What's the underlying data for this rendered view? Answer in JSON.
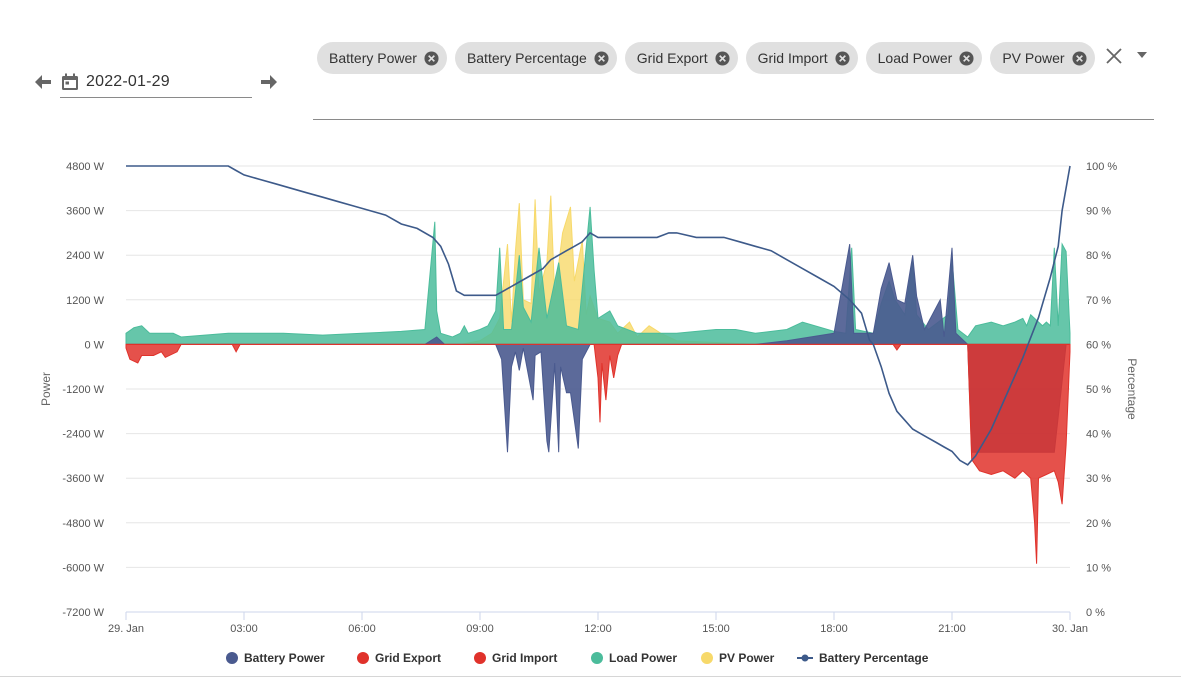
{
  "date_picker": {
    "value": "2022-01-29",
    "prev_icon": "arrow-left-icon",
    "next_icon": "arrow-right-icon",
    "calendar_icon": "calendar-icon"
  },
  "series_select": {
    "chips": [
      "Battery Power",
      "Battery Percentage",
      "Grid Export",
      "Grid Import",
      "Load Power",
      "PV Power"
    ],
    "clear_icon": "close-icon",
    "dropdown_icon": "caret-down-icon"
  },
  "chart_data": {
    "type": "area",
    "title": "",
    "ylabel": "Power",
    "ylabel_right": "Percentage",
    "ylim": [
      -7200,
      4800
    ],
    "ylim_right": [
      0,
      100
    ],
    "y_ticks": [
      "4800 W",
      "3600 W",
      "2400 W",
      "1200 W",
      "0 W",
      "-1200 W",
      "-2400 W",
      "-3600 W",
      "-4800 W",
      "-6000 W",
      "-7200 W"
    ],
    "y_ticks_right": [
      "100 %",
      "90 %",
      "80 %",
      "70 %",
      "60 %",
      "50 %",
      "40 %",
      "30 %",
      "20 %",
      "10 %",
      "0 %"
    ],
    "x_ticks": [
      "29. Jan",
      "03:00",
      "06:00",
      "09:00",
      "12:00",
      "15:00",
      "18:00",
      "21:00",
      "30. Jan"
    ],
    "x_unit": "hour",
    "xlim": [
      0,
      24
    ],
    "grid": true,
    "legend_position": "bottom",
    "series": [
      {
        "name": "Battery Power",
        "axis": "left",
        "type": "area",
        "color": "#4a5a8f",
        "points": [
          [
            0,
            0
          ],
          [
            7.6,
            0
          ],
          [
            7.9,
            200
          ],
          [
            8.1,
            0
          ],
          [
            9.4,
            0
          ],
          [
            9.55,
            -400
          ],
          [
            9.7,
            -2900
          ],
          [
            9.8,
            -600
          ],
          [
            9.9,
            -200
          ],
          [
            10.0,
            -700
          ],
          [
            10.1,
            -100
          ],
          [
            10.35,
            -1500
          ],
          [
            10.4,
            -300
          ],
          [
            10.55,
            -200
          ],
          [
            10.7,
            -2600
          ],
          [
            10.75,
            -2900
          ],
          [
            10.9,
            -500
          ],
          [
            11.0,
            -2900
          ],
          [
            11.05,
            -600
          ],
          [
            11.2,
            -1300
          ],
          [
            11.3,
            -1300
          ],
          [
            11.5,
            -2800
          ],
          [
            11.6,
            -400
          ],
          [
            11.8,
            0
          ],
          [
            12.0,
            0
          ],
          [
            16.0,
            0
          ],
          [
            16.8,
            100
          ],
          [
            18.0,
            300
          ],
          [
            18.4,
            2700
          ],
          [
            18.5,
            300
          ],
          [
            19.0,
            300
          ],
          [
            19.2,
            1500
          ],
          [
            19.4,
            2200
          ],
          [
            19.5,
            1700
          ],
          [
            19.6,
            1200
          ],
          [
            19.8,
            1100
          ],
          [
            20.0,
            2400
          ],
          [
            20.1,
            1300
          ],
          [
            20.3,
            400
          ],
          [
            20.7,
            1200
          ],
          [
            20.8,
            200
          ],
          [
            21.0,
            2600
          ],
          [
            21.1,
            300
          ],
          [
            21.4,
            0
          ],
          [
            21.5,
            -2900
          ],
          [
            23.6,
            -2900
          ],
          [
            23.8,
            -1000
          ],
          [
            23.9,
            0
          ],
          [
            24.0,
            0
          ]
        ]
      },
      {
        "name": "Grid Export",
        "axis": "left",
        "type": "area",
        "color": "#e0322b",
        "points": [
          [
            0,
            -100
          ],
          [
            0.1,
            -400
          ],
          [
            0.3,
            -500
          ],
          [
            0.4,
            -300
          ],
          [
            0.7,
            -300
          ],
          [
            0.9,
            -200
          ],
          [
            1.0,
            -350
          ],
          [
            1.3,
            -200
          ],
          [
            1.4,
            0
          ],
          [
            2.7,
            0
          ],
          [
            2.8,
            -200
          ],
          [
            2.9,
            0
          ],
          [
            11.9,
            0
          ],
          [
            12.0,
            -900
          ],
          [
            12.05,
            -2100
          ],
          [
            12.1,
            -500
          ],
          [
            12.2,
            -1500
          ],
          [
            12.3,
            -300
          ],
          [
            12.4,
            -900
          ],
          [
            12.5,
            -300
          ],
          [
            12.6,
            0
          ],
          [
            19.5,
            0
          ],
          [
            19.6,
            -150
          ],
          [
            19.7,
            0
          ],
          [
            21.4,
            0
          ],
          [
            21.5,
            -3100
          ],
          [
            21.7,
            -3400
          ],
          [
            22.0,
            -3500
          ],
          [
            22.3,
            -3400
          ],
          [
            22.6,
            -3600
          ],
          [
            22.8,
            -3400
          ],
          [
            23.0,
            -3600
          ],
          [
            23.1,
            -4800
          ],
          [
            23.15,
            -5900
          ],
          [
            23.2,
            -3600
          ],
          [
            23.4,
            -3500
          ],
          [
            23.6,
            -3400
          ],
          [
            23.7,
            -3700
          ],
          [
            23.8,
            -4300
          ],
          [
            23.9,
            -2700
          ],
          [
            24.0,
            -200
          ],
          [
            24.0,
            0
          ]
        ]
      },
      {
        "name": "Grid Import",
        "axis": "left",
        "type": "area",
        "color": "#e0322b",
        "points": [
          [
            0,
            0
          ],
          [
            24,
            0
          ]
        ]
      },
      {
        "name": "Load Power",
        "axis": "left",
        "type": "area",
        "color": "#4bbc9b",
        "points": [
          [
            0,
            300
          ],
          [
            0.2,
            450
          ],
          [
            0.4,
            500
          ],
          [
            0.6,
            300
          ],
          [
            1.2,
            300
          ],
          [
            1.4,
            200
          ],
          [
            2.6,
            300
          ],
          [
            3.0,
            300
          ],
          [
            4.0,
            300
          ],
          [
            5.0,
            250
          ],
          [
            6.0,
            300
          ],
          [
            7.0,
            350
          ],
          [
            7.6,
            400
          ],
          [
            7.85,
            3300
          ],
          [
            7.9,
            900
          ],
          [
            8.0,
            300
          ],
          [
            8.3,
            200
          ],
          [
            8.5,
            300
          ],
          [
            8.6,
            500
          ],
          [
            8.7,
            300
          ],
          [
            9.0,
            400
          ],
          [
            9.2,
            500
          ],
          [
            9.4,
            900
          ],
          [
            9.5,
            2600
          ],
          [
            9.6,
            400
          ],
          [
            9.8,
            400
          ],
          [
            10.0,
            2400
          ],
          [
            10.1,
            1000
          ],
          [
            10.3,
            600
          ],
          [
            10.5,
            2600
          ],
          [
            10.7,
            700
          ],
          [
            11.0,
            2200
          ],
          [
            11.2,
            500
          ],
          [
            11.5,
            400
          ],
          [
            11.8,
            3700
          ],
          [
            11.9,
            2000
          ],
          [
            12.0,
            700
          ],
          [
            12.3,
            900
          ],
          [
            12.5,
            500
          ],
          [
            13.0,
            300
          ],
          [
            14.0,
            300
          ],
          [
            15.0,
            400
          ],
          [
            15.5,
            400
          ],
          [
            16.0,
            300
          ],
          [
            16.8,
            400
          ],
          [
            17.2,
            600
          ],
          [
            18.0,
            350
          ],
          [
            18.3,
            300
          ],
          [
            18.45,
            2600
          ],
          [
            18.55,
            400
          ],
          [
            19.0,
            300
          ],
          [
            19.2,
            1100
          ],
          [
            19.4,
            1700
          ],
          [
            19.55,
            1200
          ],
          [
            19.8,
            800
          ],
          [
            20.0,
            2300
          ],
          [
            20.1,
            800
          ],
          [
            20.4,
            400
          ],
          [
            20.9,
            800
          ],
          [
            21.0,
            2300
          ],
          [
            21.15,
            400
          ],
          [
            21.4,
            200
          ],
          [
            21.6,
            500
          ],
          [
            22.0,
            600
          ],
          [
            22.3,
            500
          ],
          [
            22.6,
            600
          ],
          [
            22.8,
            700
          ],
          [
            22.9,
            500
          ],
          [
            23.0,
            800
          ],
          [
            23.3,
            500
          ],
          [
            23.4,
            600
          ],
          [
            23.5,
            500
          ],
          [
            23.6,
            2600
          ],
          [
            23.7,
            500
          ],
          [
            23.8,
            2700
          ],
          [
            23.9,
            2500
          ],
          [
            24.0,
            300
          ],
          [
            24.0,
            0
          ]
        ]
      },
      {
        "name": "PV Power",
        "axis": "left",
        "type": "area",
        "color": "#f7d96a",
        "points": [
          [
            0,
            0
          ],
          [
            8.5,
            0
          ],
          [
            9.0,
            100
          ],
          [
            9.3,
            300
          ],
          [
            9.5,
            700
          ],
          [
            9.7,
            2700
          ],
          [
            9.8,
            600
          ],
          [
            9.9,
            2500
          ],
          [
            10.0,
            3800
          ],
          [
            10.1,
            1200
          ],
          [
            10.3,
            1100
          ],
          [
            10.4,
            3900
          ],
          [
            10.5,
            1400
          ],
          [
            10.7,
            2200
          ],
          [
            10.8,
            4000
          ],
          [
            10.9,
            1300
          ],
          [
            11.1,
            3000
          ],
          [
            11.3,
            3700
          ],
          [
            11.4,
            1700
          ],
          [
            11.6,
            2800
          ],
          [
            11.7,
            800
          ],
          [
            11.8,
            1300
          ],
          [
            12.0,
            700
          ],
          [
            12.3,
            600
          ],
          [
            12.5,
            300
          ],
          [
            12.8,
            600
          ],
          [
            13.0,
            200
          ],
          [
            13.3,
            500
          ],
          [
            13.6,
            300
          ],
          [
            14.0,
            100
          ],
          [
            15.0,
            50
          ],
          [
            16.0,
            0
          ],
          [
            24.0,
            0
          ]
        ]
      },
      {
        "name": "Battery Percentage",
        "axis": "right",
        "type": "line",
        "color": "#3d5a8a",
        "points": [
          [
            0,
            100
          ],
          [
            2.6,
            100
          ],
          [
            2.8,
            99
          ],
          [
            3.0,
            98
          ],
          [
            3.4,
            97
          ],
          [
            3.8,
            96
          ],
          [
            4.2,
            95
          ],
          [
            4.6,
            94
          ],
          [
            5.0,
            93
          ],
          [
            5.4,
            92
          ],
          [
            5.8,
            91
          ],
          [
            6.2,
            90
          ],
          [
            6.6,
            89
          ],
          [
            7.0,
            87
          ],
          [
            7.4,
            86
          ],
          [
            7.8,
            84
          ],
          [
            8.0,
            82
          ],
          [
            8.2,
            78
          ],
          [
            8.4,
            72
          ],
          [
            8.6,
            71
          ],
          [
            9.0,
            71
          ],
          [
            9.4,
            71
          ],
          [
            9.6,
            72
          ],
          [
            9.8,
            73
          ],
          [
            10.0,
            74
          ],
          [
            10.2,
            75
          ],
          [
            10.4,
            76
          ],
          [
            10.6,
            77
          ],
          [
            10.8,
            79
          ],
          [
            11.0,
            80
          ],
          [
            11.2,
            81
          ],
          [
            11.4,
            82
          ],
          [
            11.6,
            83
          ],
          [
            11.8,
            85
          ],
          [
            12.0,
            84
          ],
          [
            13.0,
            84
          ],
          [
            13.5,
            84
          ],
          [
            13.8,
            85
          ],
          [
            14.0,
            85
          ],
          [
            14.5,
            84
          ],
          [
            15.0,
            84
          ],
          [
            15.2,
            84
          ],
          [
            15.6,
            83
          ],
          [
            16.0,
            82
          ],
          [
            16.4,
            81
          ],
          [
            16.8,
            79
          ],
          [
            17.2,
            77
          ],
          [
            17.6,
            75
          ],
          [
            18.0,
            73
          ],
          [
            18.4,
            70
          ],
          [
            18.7,
            67
          ],
          [
            18.9,
            61
          ],
          [
            19.0,
            60
          ],
          [
            19.2,
            55
          ],
          [
            19.4,
            49
          ],
          [
            19.6,
            45
          ],
          [
            19.8,
            43
          ],
          [
            20.0,
            41
          ],
          [
            20.2,
            40
          ],
          [
            20.4,
            39
          ],
          [
            20.6,
            38
          ],
          [
            20.8,
            37
          ],
          [
            21.0,
            36
          ],
          [
            21.2,
            34
          ],
          [
            21.4,
            33
          ],
          [
            21.6,
            35
          ],
          [
            22.0,
            41
          ],
          [
            22.4,
            49
          ],
          [
            22.8,
            57
          ],
          [
            23.2,
            66
          ],
          [
            23.5,
            75
          ],
          [
            23.7,
            82
          ],
          [
            23.8,
            90
          ],
          [
            24.0,
            100
          ]
        ]
      }
    ]
  },
  "legend": {
    "items": [
      {
        "label": "Battery Power",
        "color": "#4a5a8f",
        "marker": "dot"
      },
      {
        "label": "Grid Export",
        "color": "#e0322b",
        "marker": "dot"
      },
      {
        "label": "Grid Import",
        "color": "#e0322b",
        "marker": "dot"
      },
      {
        "label": "Load Power",
        "color": "#4bbc9b",
        "marker": "dot"
      },
      {
        "label": "PV Power",
        "color": "#f7d96a",
        "marker": "dot"
      },
      {
        "label": "Battery Percentage",
        "color": "#3d5a8a",
        "marker": "line-dot"
      }
    ]
  }
}
